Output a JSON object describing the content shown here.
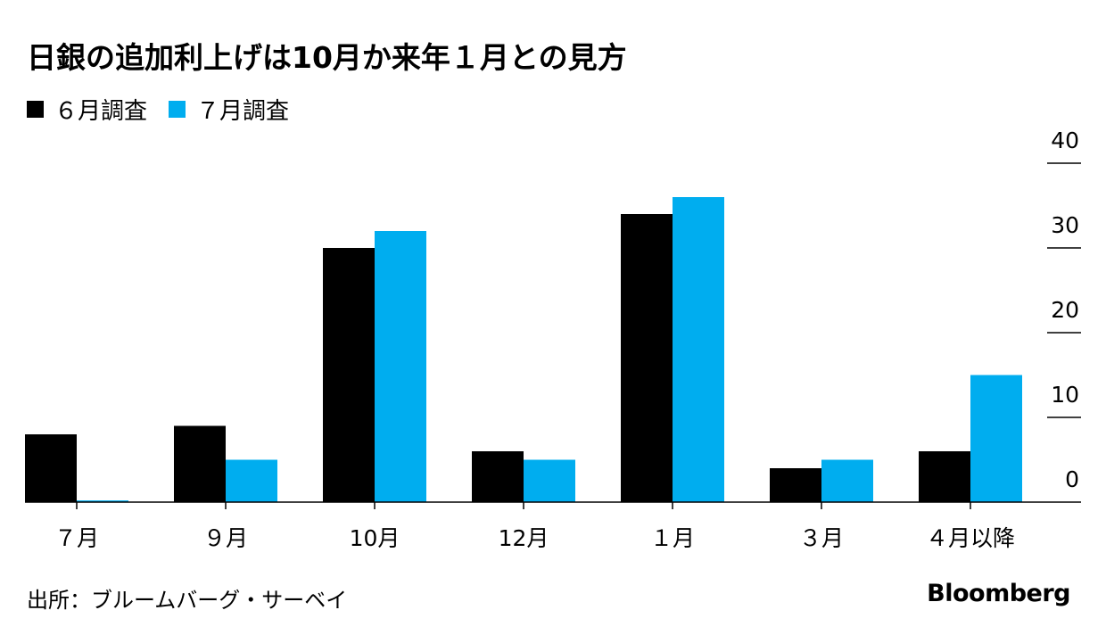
{
  "title": "日銀の追加利上げは10月か来年１月との見方",
  "legend": [
    {
      "label": "６月調査",
      "color": "#000000"
    },
    {
      "label": "７月調査",
      "color": "#00adef"
    }
  ],
  "source": "出所：ブルームバーグ・サーベイ",
  "brand": "Bloomberg",
  "chart_data": {
    "type": "bar",
    "categories": [
      "７月",
      "９月",
      "10月",
      "12月",
      "１月",
      "３月",
      "４月以降"
    ],
    "series": [
      {
        "name": "６月調査",
        "color": "#000000",
        "values": [
          8,
          9,
          30,
          6,
          34,
          4,
          6
        ]
      },
      {
        "name": "７月調査",
        "color": "#00adef",
        "values": [
          0.2,
          5,
          32,
          5,
          36,
          5,
          15
        ]
      }
    ],
    "ylim": [
      0,
      40
    ],
    "yticks": [
      "0",
      "10",
      "20",
      "30",
      "40"
    ],
    "ytick_values": [
      0,
      10,
      20,
      30,
      40
    ],
    "axis_position": "right",
    "grid": false
  }
}
